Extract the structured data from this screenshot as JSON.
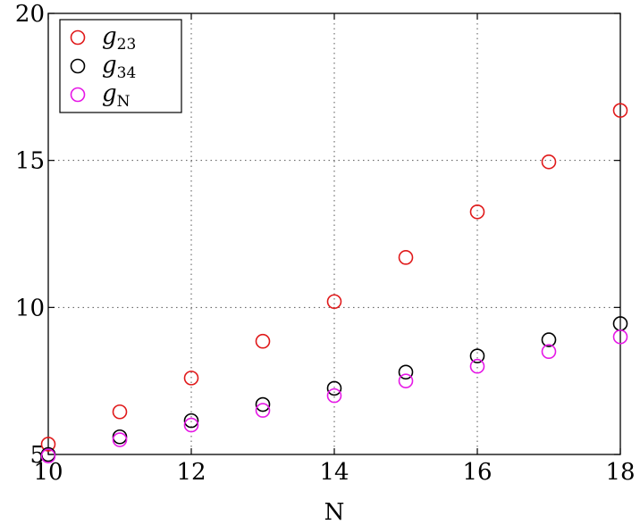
{
  "chart_data": {
    "type": "scatter",
    "title": "",
    "xlabel": "N",
    "ylabel": "",
    "xlim": [
      10,
      18
    ],
    "ylim": [
      5,
      20
    ],
    "xticks": [
      10,
      12,
      14,
      16,
      18
    ],
    "yticks": [
      5,
      10,
      15,
      20
    ],
    "grid": true,
    "legend_position": "top-left",
    "x": [
      10,
      11,
      12,
      13,
      14,
      15,
      16,
      17,
      18
    ],
    "series": [
      {
        "name": "g",
        "subscript": "23",
        "color": "#e0191a",
        "values": [
          5.35,
          6.45,
          7.6,
          8.85,
          10.2,
          11.7,
          13.25,
          14.95,
          16.7
        ]
      },
      {
        "name": "g",
        "subscript": "34",
        "color": "#000000",
        "values": [
          5.0,
          5.6,
          6.15,
          6.7,
          7.25,
          7.8,
          8.35,
          8.9,
          9.45
        ]
      },
      {
        "name": "g",
        "subscript": "N",
        "color": "#e617e6",
        "values": [
          4.95,
          5.5,
          6.0,
          6.5,
          7.0,
          7.5,
          8.0,
          8.5,
          9.0
        ]
      }
    ]
  }
}
